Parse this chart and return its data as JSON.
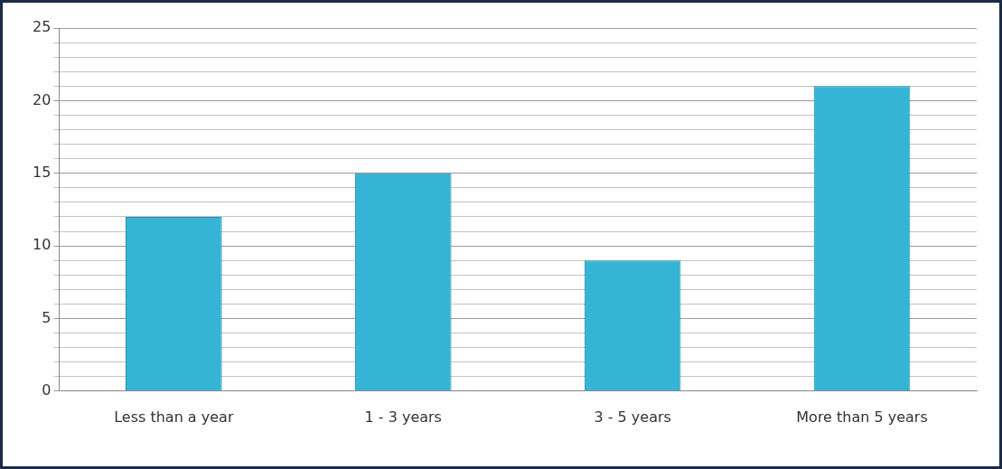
{
  "chart_data": {
    "type": "bar",
    "categories": [
      "Less than a year",
      "1 - 3 years",
      "3 - 5 years",
      "More than 5 years"
    ],
    "values": [
      12,
      15,
      9,
      21
    ],
    "color": "#36b4d6",
    "ylim": [
      0,
      25
    ],
    "yticks": [
      0,
      {
        "value": 1,
        "label": null
      },
      {
        "value": 2,
        "label": null
      },
      {
        "value": 3,
        "label": null
      },
      {
        "value": 4,
        "label": null
      },
      5,
      {
        "value": 6,
        "label": null
      },
      {
        "value": 7,
        "label": null
      },
      {
        "value": 8,
        "label": null
      },
      {
        "value": 9,
        "label": null
      },
      10,
      {
        "value": 11,
        "label": null
      },
      {
        "value": 12,
        "label": null
      },
      {
        "value": 13,
        "label": null
      },
      {
        "value": 14,
        "label": null
      },
      15,
      {
        "value": 16,
        "label": null
      },
      {
        "value": 17,
        "label": null
      },
      {
        "value": 18,
        "label": null
      },
      {
        "value": 19,
        "label": null
      },
      20,
      {
        "value": 21,
        "label": null
      },
      {
        "value": 22,
        "label": null
      },
      {
        "value": 23,
        "label": null
      },
      {
        "value": 24,
        "label": null
      },
      25
    ],
    "grid": "y"
  }
}
